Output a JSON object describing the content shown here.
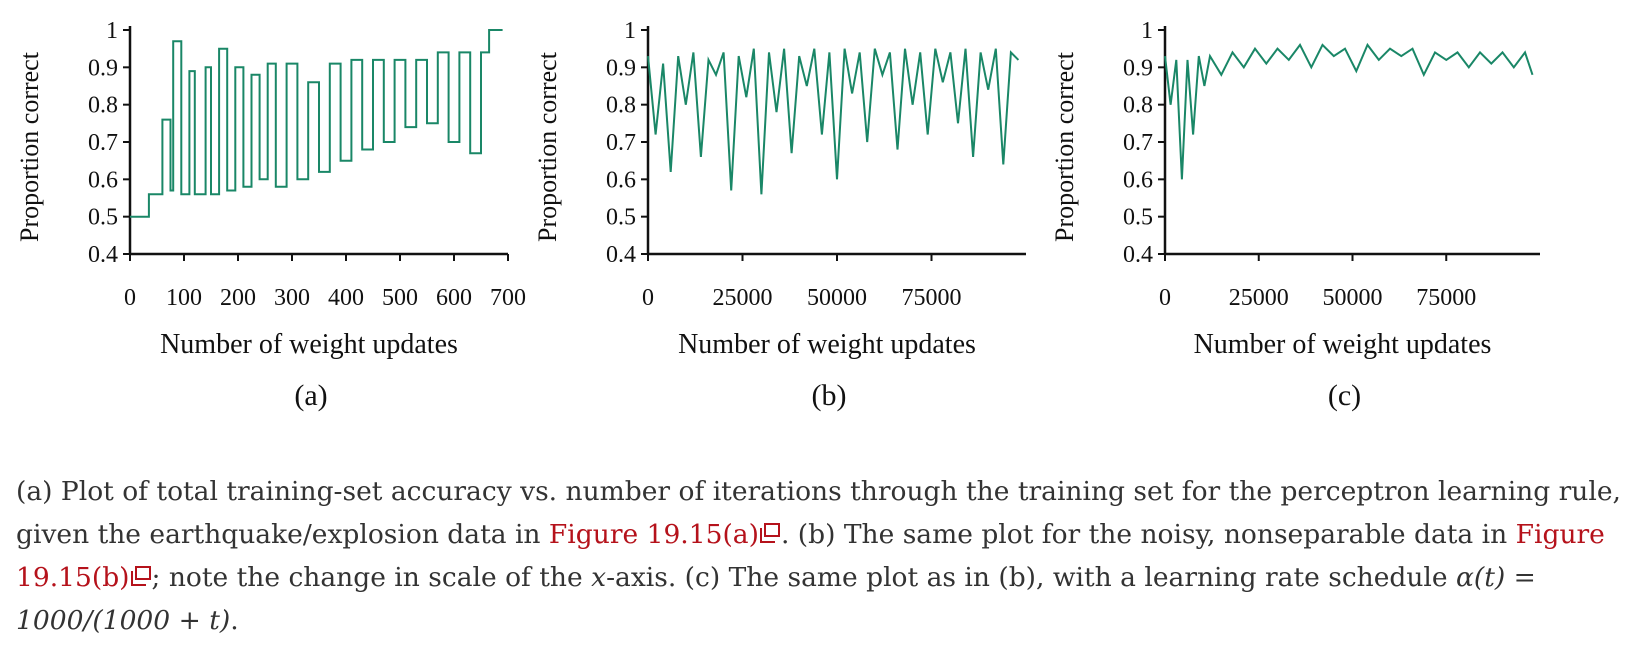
{
  "figure": {
    "accent_color": "#1a8767",
    "link_color": "#b5121b",
    "panels": [
      {
        "panel_label": "(a)"
      },
      {
        "panel_label": "(b)"
      },
      {
        "panel_label": "(c)"
      }
    ]
  },
  "chart_data": [
    {
      "type": "line",
      "xlabel": "Number of weight updates",
      "ylabel": "Proportion correct",
      "xlim": [
        0,
        700
      ],
      "ylim": [
        0.4,
        1.0
      ],
      "xticks": [
        "0",
        "100",
        "200",
        "300",
        "400",
        "500",
        "600",
        "700"
      ],
      "yticks": [
        "0.4",
        "0.5",
        "0.6",
        "0.7",
        "0.8",
        "0.9",
        "1"
      ],
      "series": [
        {
          "x": [
            0,
            35,
            35,
            60,
            60,
            75,
            75,
            80,
            80,
            95,
            95,
            110,
            110,
            120,
            120,
            140,
            140,
            150,
            150,
            165,
            165,
            180,
            180,
            195,
            195,
            210,
            210,
            225,
            225,
            240,
            240,
            255,
            255,
            270,
            270,
            290,
            290,
            310,
            310,
            330,
            330,
            350,
            350,
            370,
            370,
            390,
            390,
            410,
            410,
            430,
            430,
            450,
            450,
            470,
            470,
            490,
            490,
            510,
            510,
            530,
            530,
            550,
            550,
            570,
            570,
            590,
            590,
            610,
            610,
            630,
            630,
            650,
            650,
            665,
            665,
            690
          ],
          "y": [
            0.5,
            0.5,
            0.56,
            0.56,
            0.76,
            0.76,
            0.57,
            0.57,
            0.97,
            0.97,
            0.56,
            0.56,
            0.89,
            0.89,
            0.56,
            0.56,
            0.9,
            0.9,
            0.56,
            0.56,
            0.95,
            0.95,
            0.57,
            0.57,
            0.9,
            0.9,
            0.58,
            0.58,
            0.88,
            0.88,
            0.6,
            0.6,
            0.91,
            0.91,
            0.58,
            0.58,
            0.91,
            0.91,
            0.6,
            0.6,
            0.86,
            0.86,
            0.62,
            0.62,
            0.91,
            0.91,
            0.65,
            0.65,
            0.92,
            0.92,
            0.68,
            0.68,
            0.92,
            0.92,
            0.7,
            0.7,
            0.92,
            0.92,
            0.74,
            0.74,
            0.92,
            0.92,
            0.75,
            0.75,
            0.94,
            0.94,
            0.7,
            0.7,
            0.94,
            0.94,
            0.67,
            0.67,
            0.94,
            0.94,
            1.0,
            1.0
          ]
        }
      ]
    },
    {
      "type": "line",
      "xlabel": "Number of weight updates",
      "ylabel": "Proportion correct",
      "xlim": [
        0,
        100000
      ],
      "ylim": [
        0.4,
        1.0
      ],
      "xticks": [
        "0",
        "25000",
        "50000",
        "75000"
      ],
      "yticks": [
        "0.4",
        "0.5",
        "0.6",
        "0.7",
        "0.8",
        "0.9",
        "1"
      ],
      "series": [
        {
          "x": [
            0,
            2000,
            4000,
            6000,
            8000,
            10000,
            12000,
            14000,
            16000,
            18000,
            20000,
            22000,
            24000,
            26000,
            28000,
            30000,
            32000,
            34000,
            36000,
            38000,
            40000,
            42000,
            44000,
            46000,
            48000,
            50000,
            52000,
            54000,
            56000,
            58000,
            60000,
            62000,
            64000,
            66000,
            68000,
            70000,
            72000,
            74000,
            76000,
            78000,
            80000,
            82000,
            84000,
            86000,
            88000,
            90000,
            92000,
            94000,
            96000,
            98000
          ],
          "y": [
            0.93,
            0.72,
            0.91,
            0.62,
            0.93,
            0.8,
            0.94,
            0.66,
            0.92,
            0.88,
            0.94,
            0.57,
            0.93,
            0.82,
            0.95,
            0.56,
            0.94,
            0.78,
            0.95,
            0.67,
            0.93,
            0.85,
            0.95,
            0.72,
            0.94,
            0.6,
            0.95,
            0.83,
            0.94,
            0.7,
            0.95,
            0.88,
            0.94,
            0.68,
            0.95,
            0.8,
            0.94,
            0.72,
            0.95,
            0.86,
            0.94,
            0.75,
            0.95,
            0.66,
            0.94,
            0.84,
            0.95,
            0.64,
            0.94,
            0.92
          ]
        }
      ]
    },
    {
      "type": "line",
      "xlabel": "Number of weight updates",
      "ylabel": "Proportion correct",
      "xlim": [
        0,
        100000
      ],
      "ylim": [
        0.4,
        1.0
      ],
      "xticks": [
        "0",
        "25000",
        "50000",
        "75000"
      ],
      "yticks": [
        "0.4",
        "0.5",
        "0.6",
        "0.7",
        "0.8",
        "0.9",
        "1"
      ],
      "series": [
        {
          "x": [
            0,
            1500,
            3000,
            4500,
            6000,
            7500,
            9000,
            10500,
            12000,
            15000,
            18000,
            21000,
            24000,
            27000,
            30000,
            33000,
            36000,
            39000,
            42000,
            45000,
            48000,
            51000,
            54000,
            57000,
            60000,
            63000,
            66000,
            69000,
            72000,
            75000,
            78000,
            81000,
            84000,
            87000,
            90000,
            93000,
            96000,
            98000
          ],
          "y": [
            0.93,
            0.8,
            0.92,
            0.6,
            0.92,
            0.72,
            0.93,
            0.85,
            0.93,
            0.88,
            0.94,
            0.9,
            0.95,
            0.91,
            0.95,
            0.92,
            0.96,
            0.9,
            0.96,
            0.93,
            0.95,
            0.89,
            0.96,
            0.92,
            0.95,
            0.93,
            0.95,
            0.88,
            0.94,
            0.92,
            0.94,
            0.9,
            0.94,
            0.91,
            0.94,
            0.9,
            0.94,
            0.88
          ]
        }
      ]
    }
  ],
  "caption": {
    "part1": "(a) Plot of total training-set accuracy vs. number of iterations through the training set for the perceptron learning rule, given the earthquake/explosion data in ",
    "link1": "Figure 19.15(a)",
    "part2": ". (b) The same plot for the noisy, nonseparable data in ",
    "link2": "Figure 19.15(b)",
    "part3": "; note the change in scale of the ",
    "math_x": "x",
    "part4": "-axis. (c) The same plot as in (b), with a learning rate schedule ",
    "math_schedule": "α(t) = 1000/(1000 + t)",
    "part5": "."
  }
}
